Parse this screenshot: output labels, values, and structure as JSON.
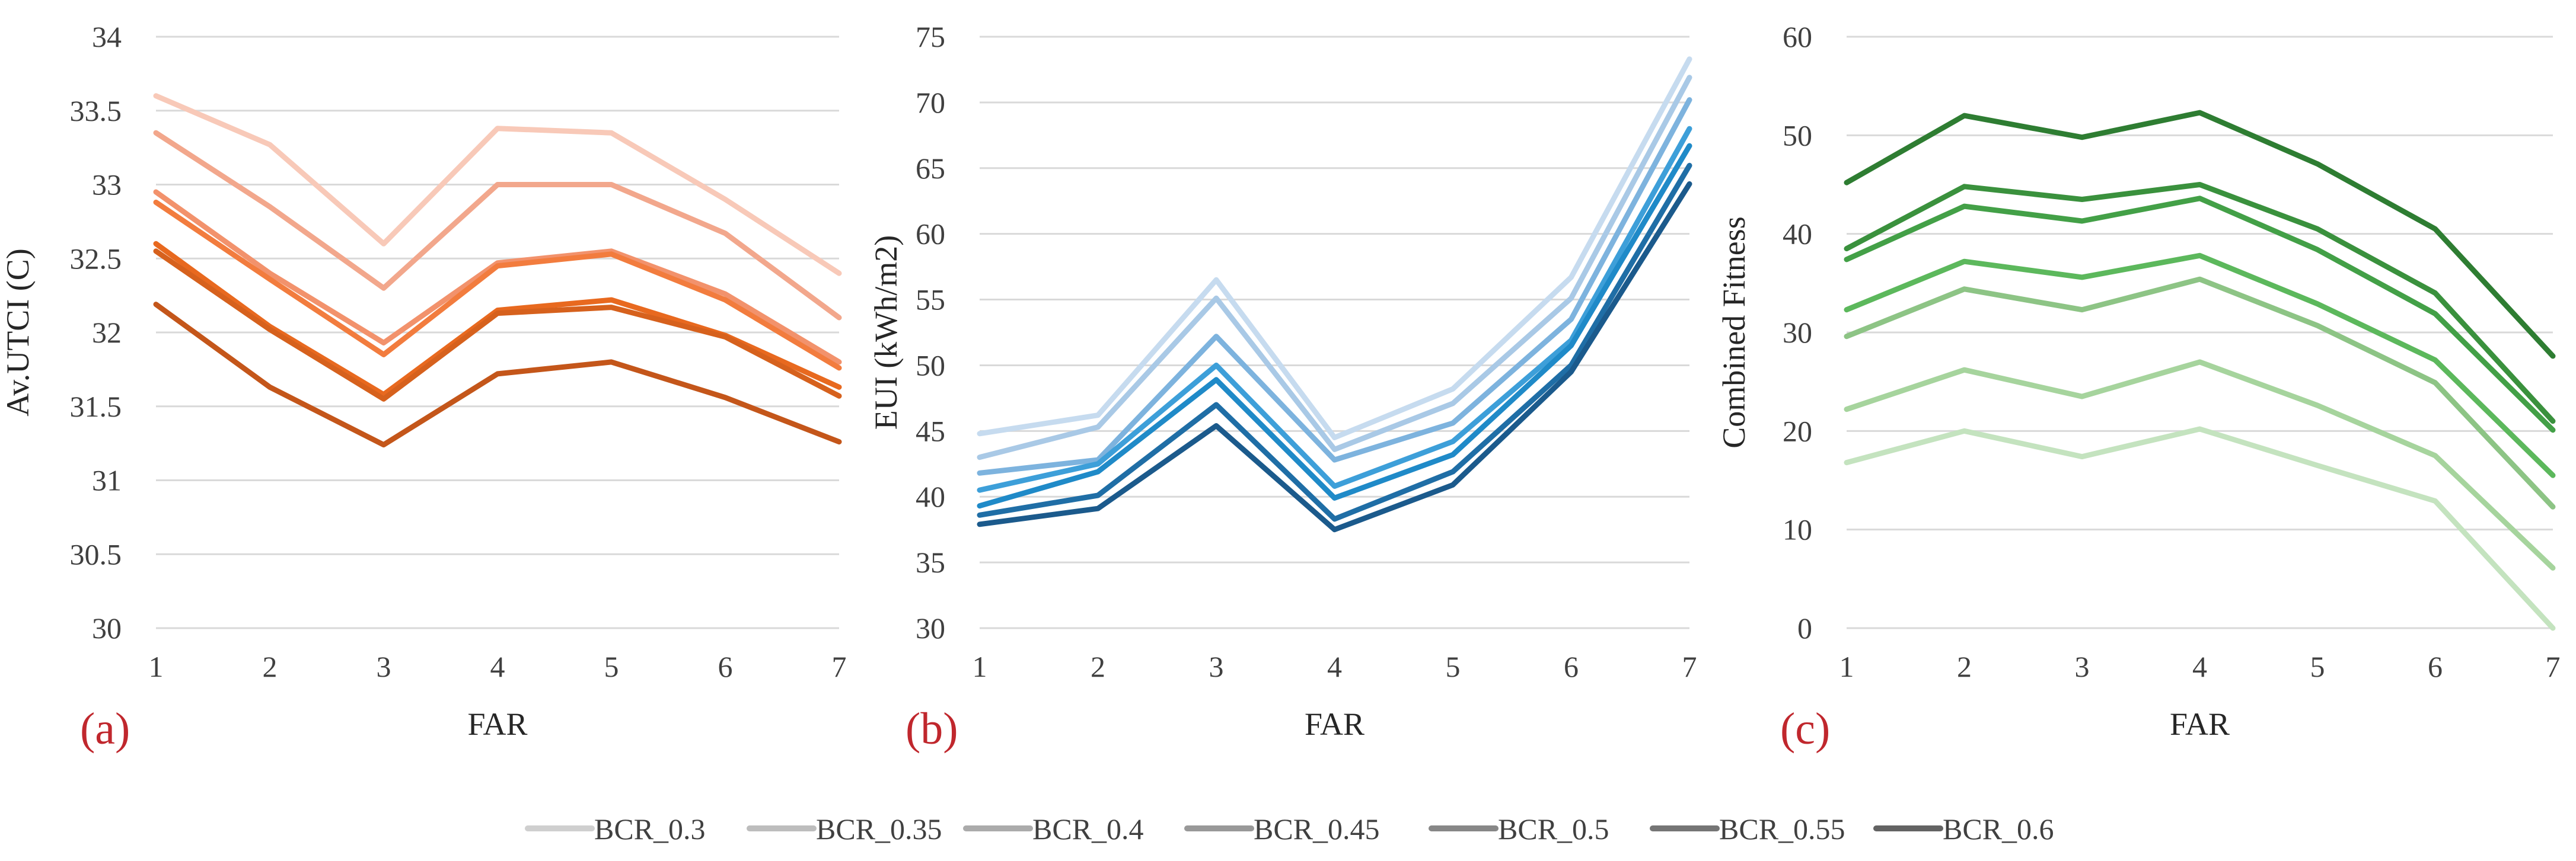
{
  "legend_entries": [
    "BCR_0.3",
    "BCR_0.35",
    "BCR_0.4",
    "BCR_0.45",
    "BCR_0.5",
    "BCR_0.55",
    "BCR_0.6"
  ],
  "legend_colors": [
    "#cfcfcf",
    "#bdbdbd",
    "#ababab",
    "#999999",
    "#878787",
    "#757575",
    "#636363"
  ],
  "chart_data": [
    {
      "type": "line",
      "panel_label": "(a)",
      "xlabel": "FAR",
      "ylabel": "Av.UTCI (C)",
      "x": [
        1,
        2,
        3,
        4,
        5,
        6,
        7
      ],
      "ylim": [
        30,
        34
      ],
      "yticks": [
        "30",
        "30.5",
        "31",
        "31.5",
        "32",
        "32.5",
        "33",
        "33.5",
        "34"
      ],
      "series": [
        {
          "name": "BCR_0.3",
          "color": "#f8c9b8",
          "values": [
            33.6,
            33.27,
            32.6,
            33.38,
            33.35,
            32.9,
            32.4
          ]
        },
        {
          "name": "BCR_0.35",
          "color": "#f2a78c",
          "values": [
            33.35,
            32.85,
            32.3,
            33.0,
            33.0,
            32.67,
            32.1
          ]
        },
        {
          "name": "BCR_0.4",
          "color": "#f2926c",
          "values": [
            32.95,
            32.4,
            31.93,
            32.47,
            32.55,
            32.26,
            31.8
          ]
        },
        {
          "name": "BCR_0.45",
          "color": "#f27c3e",
          "values": [
            32.88,
            32.36,
            31.85,
            32.45,
            32.53,
            32.22,
            31.76
          ]
        },
        {
          "name": "BCR_0.5",
          "color": "#e8691f",
          "values": [
            32.6,
            32.04,
            31.58,
            32.15,
            32.22,
            31.98,
            31.63
          ]
        },
        {
          "name": "BCR_0.55",
          "color": "#d6611d",
          "values": [
            32.55,
            32.02,
            31.55,
            32.13,
            32.17,
            31.97,
            31.57
          ]
        },
        {
          "name": "BCR_0.6",
          "color": "#c4561a",
          "values": [
            32.19,
            31.63,
            31.24,
            31.72,
            31.8,
            31.56,
            31.26
          ]
        }
      ]
    },
    {
      "type": "line",
      "panel_label": "(b)",
      "xlabel": "FAR",
      "ylabel": "EUI (kWh/m2)",
      "x": [
        1,
        2,
        3,
        4,
        5,
        6,
        7
      ],
      "ylim": [
        30,
        75
      ],
      "yticks": [
        "30",
        "35",
        "40",
        "45",
        "50",
        "55",
        "60",
        "65",
        "70",
        "75"
      ],
      "series": [
        {
          "name": "BCR_0.3",
          "color": "#c6dbef",
          "values": [
            44.8,
            46.2,
            56.5,
            44.5,
            48.2,
            56.7,
            73.3
          ]
        },
        {
          "name": "BCR_0.35",
          "color": "#a9c9e6",
          "values": [
            43.0,
            45.3,
            55.1,
            43.6,
            47.1,
            55.1,
            71.9
          ]
        },
        {
          "name": "BCR_0.4",
          "color": "#7db3de",
          "values": [
            41.8,
            42.8,
            52.2,
            42.8,
            45.6,
            53.5,
            70.2
          ]
        },
        {
          "name": "BCR_0.45",
          "color": "#3d9fd9",
          "values": [
            40.5,
            42.5,
            50.0,
            40.8,
            44.2,
            51.9,
            68.0
          ]
        },
        {
          "name": "BCR_0.5",
          "color": "#1f8ac8",
          "values": [
            39.3,
            41.9,
            48.9,
            39.9,
            43.2,
            51.5,
            66.7
          ]
        },
        {
          "name": "BCR_0.55",
          "color": "#1f6ea6",
          "values": [
            38.6,
            40.1,
            47.0,
            38.3,
            41.9,
            50.0,
            65.2
          ]
        },
        {
          "name": "BCR_0.6",
          "color": "#1b5a8c",
          "values": [
            37.9,
            39.1,
            45.4,
            37.5,
            40.9,
            49.5,
            63.8
          ]
        }
      ]
    },
    {
      "type": "line",
      "panel_label": "(c)",
      "xlabel": "FAR",
      "ylabel": "Combined Fitness",
      "x": [
        1,
        2,
        3,
        4,
        5,
        6,
        7
      ],
      "ylim": [
        0,
        60
      ],
      "yticks": [
        "0",
        "10",
        "20",
        "30",
        "40",
        "50",
        "60"
      ],
      "series": [
        {
          "name": "BCR_0.3",
          "color": "#c4e3bf",
          "values": [
            16.8,
            20.0,
            17.4,
            20.2,
            16.5,
            12.9,
            0.0
          ]
        },
        {
          "name": "BCR_0.35",
          "color": "#a6d49d",
          "values": [
            22.2,
            26.2,
            23.5,
            27.0,
            22.6,
            17.5,
            6.1
          ]
        },
        {
          "name": "BCR_0.4",
          "color": "#8dc485",
          "values": [
            29.6,
            34.4,
            32.3,
            35.4,
            30.7,
            24.9,
            12.3
          ]
        },
        {
          "name": "BCR_0.45",
          "color": "#5cb85c",
          "values": [
            32.3,
            37.2,
            35.6,
            37.8,
            32.9,
            27.2,
            15.5
          ]
        },
        {
          "name": "BCR_0.5",
          "color": "#43a047",
          "values": [
            37.4,
            42.8,
            41.3,
            43.6,
            38.4,
            31.9,
            20.1
          ]
        },
        {
          "name": "BCR_0.55",
          "color": "#3a913d",
          "values": [
            38.5,
            44.8,
            43.5,
            45.0,
            40.5,
            34.0,
            21.0
          ]
        },
        {
          "name": "BCR_0.6",
          "color": "#2e7d32",
          "values": [
            45.2,
            52.0,
            49.8,
            52.3,
            47.1,
            40.5,
            27.6
          ]
        }
      ]
    }
  ]
}
